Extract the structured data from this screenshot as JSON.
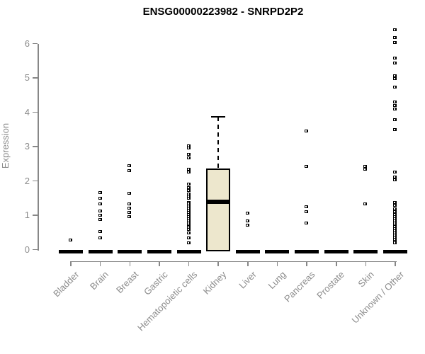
{
  "chart_data": {
    "type": "box",
    "title": "ENSG00000223982 - SNRPD2P2",
    "ylabel": "Expression",
    "xlabel": "",
    "yticks": [
      0,
      1,
      2,
      3,
      4,
      5,
      6
    ],
    "ylim": [
      0,
      6.5
    ],
    "grid": false,
    "legend": false,
    "colors": {
      "box_fill": "#EDE7CD",
      "box_border": "#000000",
      "point": "#000000",
      "axis_line": "#878787",
      "axis_text": "#8c8c8c",
      "title_text": "#000000"
    },
    "groups": [
      {
        "name": "Bladder",
        "q1": 0,
        "median": 0,
        "q3": 0,
        "whisker_low": 0,
        "whisker_high": 0,
        "points": [
          0.28
        ]
      },
      {
        "name": "Brain",
        "q1": 0,
        "median": 0,
        "q3": 0,
        "whisker_low": 0,
        "whisker_high": 0,
        "points": [
          1.66,
          1.5,
          1.33,
          1.12,
          1.0,
          0.88,
          0.52,
          0.33
        ]
      },
      {
        "name": "Breast",
        "q1": 0,
        "median": 0,
        "q3": 0,
        "whisker_low": 0,
        "whisker_high": 0,
        "points": [
          2.45,
          2.3,
          1.63,
          1.33,
          1.2,
          1.08,
          0.95
        ]
      },
      {
        "name": "Gastric",
        "q1": 0,
        "median": 0,
        "q3": 0,
        "whisker_low": 0,
        "whisker_high": 0,
        "points": []
      },
      {
        "name": "Hematopoietic cells",
        "q1": 0,
        "median": 0,
        "q3": 0,
        "whisker_low": 0,
        "whisker_high": 0,
        "points": [
          3.02,
          2.95,
          2.78,
          2.68,
          2.33,
          2.25,
          1.9,
          1.8,
          1.72,
          1.62,
          1.55,
          1.5,
          1.38,
          1.32,
          1.26,
          1.2,
          1.14,
          1.08,
          1.02,
          0.96,
          0.9,
          0.84,
          0.78,
          0.72,
          0.66,
          0.62,
          0.58,
          0.48,
          0.35,
          0.2
        ]
      },
      {
        "name": "Kidney",
        "q1": 0,
        "median": 1.4,
        "q3": 2.36,
        "whisker_low": 0,
        "whisker_high": 3.86,
        "points": []
      },
      {
        "name": "Liver",
        "q1": 0,
        "median": 0,
        "q3": 0,
        "whisker_low": 0,
        "whisker_high": 0,
        "points": [
          1.06,
          0.84,
          0.72
        ]
      },
      {
        "name": "Lung",
        "q1": 0,
        "median": 0,
        "q3": 0,
        "whisker_low": 0,
        "whisker_high": 0,
        "points": []
      },
      {
        "name": "Pancreas",
        "q1": 0,
        "median": 0,
        "q3": 0,
        "whisker_low": 0,
        "whisker_high": 0,
        "points": [
          3.45,
          2.42,
          1.25,
          1.1,
          0.77
        ]
      },
      {
        "name": "Prostate",
        "q1": 0,
        "median": 0,
        "q3": 0,
        "whisker_low": 0,
        "whisker_high": 0,
        "points": []
      },
      {
        "name": "Skin",
        "q1": 0,
        "median": 0,
        "q3": 0,
        "whisker_low": 0,
        "whisker_high": 0,
        "points": [
          2.42,
          2.35,
          1.33
        ]
      },
      {
        "name": "Unknown / Other",
        "q1": 0,
        "median": 0,
        "q3": 0,
        "whisker_low": 0,
        "whisker_high": 0,
        "points": [
          6.4,
          6.17,
          6.03,
          5.57,
          5.44,
          5.07,
          4.98,
          4.73,
          4.3,
          4.2,
          4.1,
          3.79,
          3.49,
          2.25,
          2.12,
          2.04,
          1.38,
          1.28,
          1.18,
          1.1,
          1.02,
          0.96,
          0.9,
          0.84,
          0.78,
          0.72,
          0.66,
          0.6,
          0.54,
          0.48,
          0.42,
          0.36,
          0.3,
          0.24,
          0.19
        ]
      }
    ]
  }
}
